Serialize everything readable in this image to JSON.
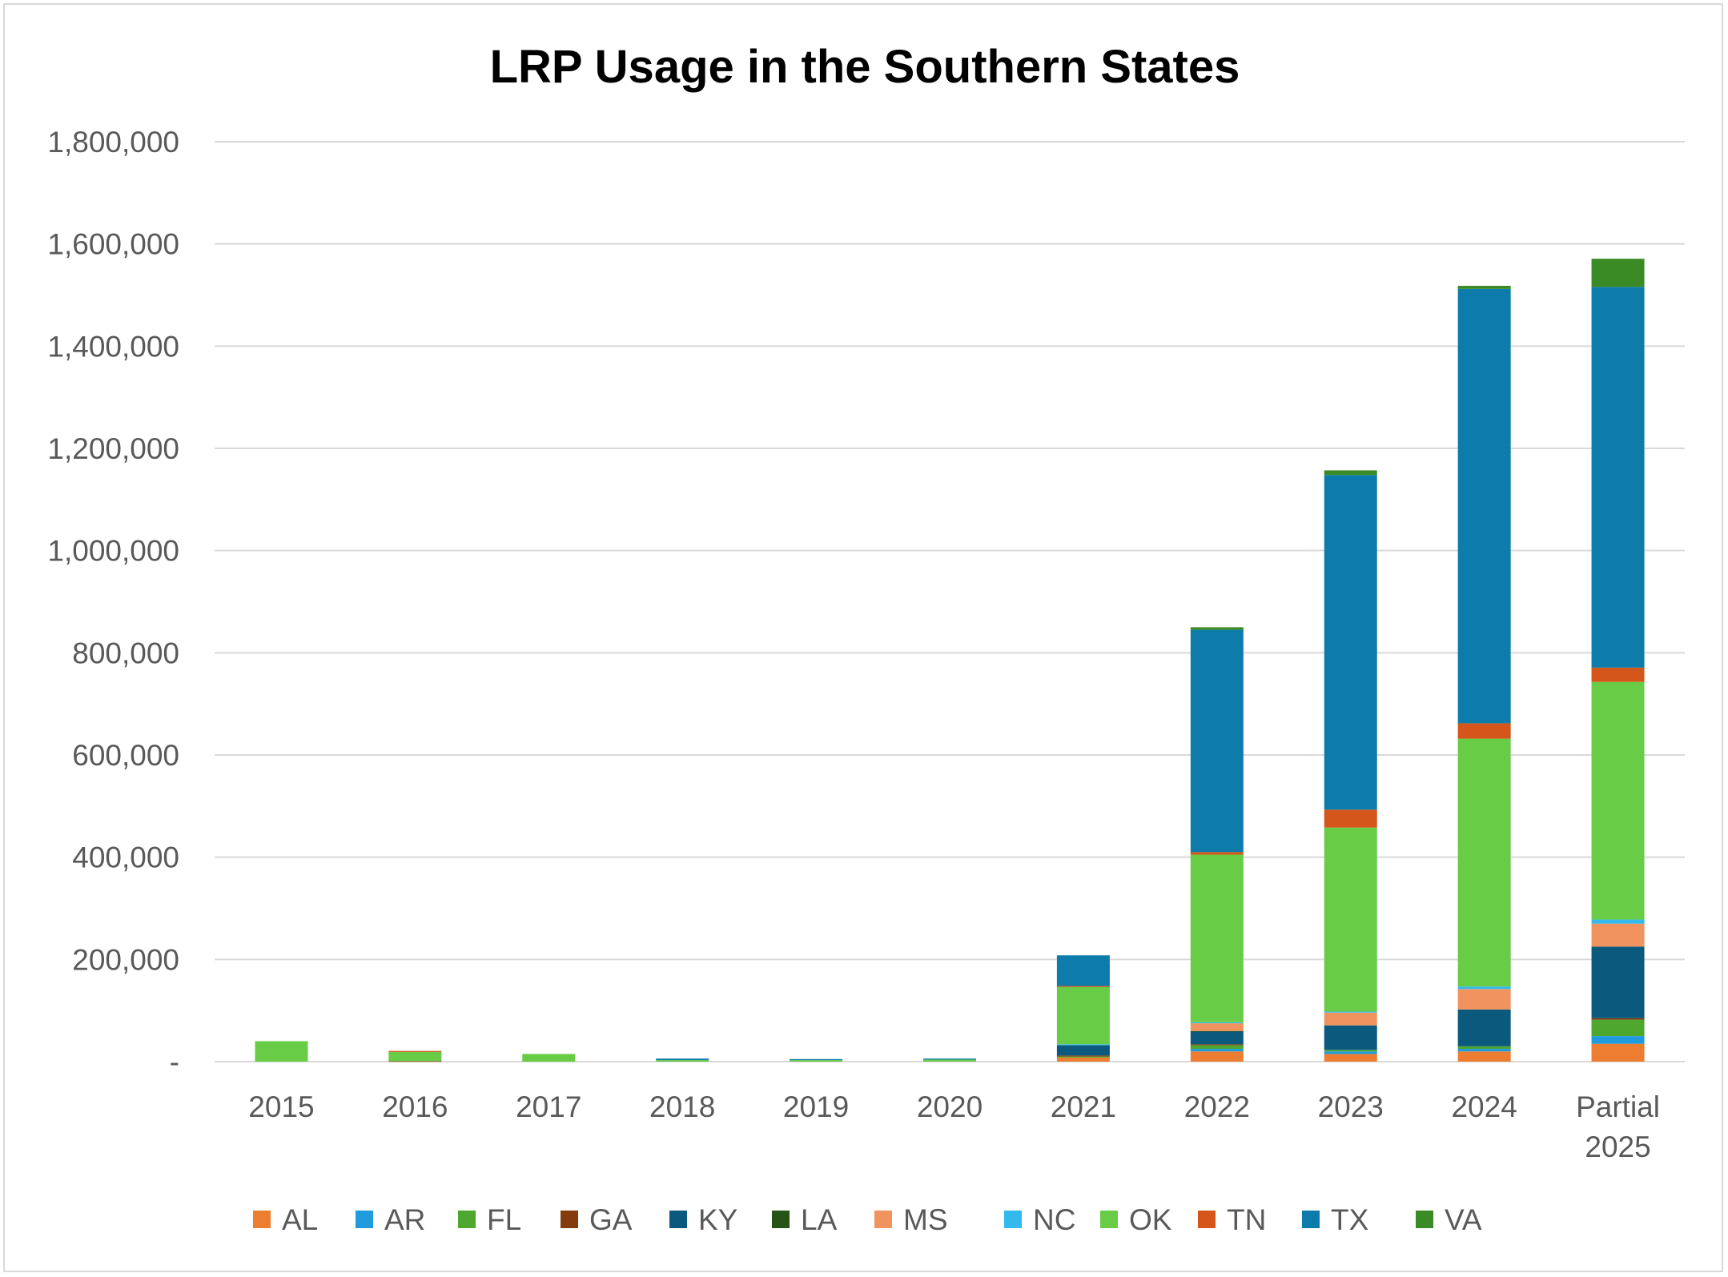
{
  "chart_data": {
    "type": "bar",
    "stacked": true,
    "title": "LRP Usage in the Southern States",
    "xlabel": "",
    "ylabel": "",
    "ylim": [
      0,
      1800000
    ],
    "yticks": [
      0,
      200000,
      400000,
      600000,
      800000,
      1000000,
      1200000,
      1400000,
      1600000,
      1800000
    ],
    "ytick_labels": [
      "-",
      "200,000",
      "400,000",
      "600,000",
      "800,000",
      "1,000,000",
      "1,200,000",
      "1,400,000",
      "1,600,000",
      "1,800,000"
    ],
    "categories": [
      [
        "2015"
      ],
      [
        "2016"
      ],
      [
        "2017"
      ],
      [
        "2018"
      ],
      [
        "2019"
      ],
      [
        "2020"
      ],
      [
        "2021"
      ],
      [
        "2022"
      ],
      [
        "2023"
      ],
      [
        "2024"
      ],
      [
        "Partial",
        "2025"
      ]
    ],
    "grid": true,
    "legend_position": "bottom",
    "series": [
      {
        "name": "AL",
        "color": "#ED7D31",
        "values": [
          0,
          0,
          0,
          0,
          0,
          0,
          8000,
          20000,
          15000,
          20000,
          35000
        ]
      },
      {
        "name": "AR",
        "color": "#1F9BDE",
        "values": [
          0,
          0,
          0,
          0,
          0,
          0,
          0,
          5000,
          5000,
          5000,
          15000
        ]
      },
      {
        "name": "FL",
        "color": "#4EA72E",
        "values": [
          0,
          0,
          0,
          0,
          0,
          0,
          2000,
          7000,
          3000,
          5000,
          32000
        ]
      },
      {
        "name": "GA",
        "color": "#843C0C",
        "values": [
          0,
          1000,
          0,
          0,
          0,
          0,
          2000,
          2000,
          0,
          0,
          3000
        ]
      },
      {
        "name": "KY",
        "color": "#0B5A7E",
        "values": [
          0,
          0,
          0,
          0,
          0,
          0,
          20000,
          25000,
          48000,
          72000,
          140000
        ]
      },
      {
        "name": "LA",
        "color": "#275317",
        "values": [
          0,
          0,
          0,
          0,
          0,
          0,
          0,
          1000,
          0,
          0,
          0
        ]
      },
      {
        "name": "MS",
        "color": "#F1935E",
        "values": [
          0,
          0,
          0,
          0,
          0,
          0,
          0,
          15000,
          25000,
          40000,
          45000
        ]
      },
      {
        "name": "NC",
        "color": "#34B9ED",
        "values": [
          0,
          0,
          0,
          0,
          0,
          0,
          2000,
          2000,
          2000,
          5000,
          8000
        ]
      },
      {
        "name": "OK",
        "color": "#69CC46",
        "values": [
          40000,
          18000,
          15000,
          3000,
          3000,
          4000,
          112000,
          328000,
          360000,
          485000,
          465000
        ]
      },
      {
        "name": "TN",
        "color": "#D4561A",
        "values": [
          0,
          2000,
          0,
          0,
          0,
          0,
          2000,
          5000,
          35000,
          30000,
          28000
        ]
      },
      {
        "name": "TX",
        "color": "#0E7CAA",
        "values": [
          0,
          0,
          0,
          3000,
          2000,
          2000,
          60000,
          435000,
          655000,
          850000,
          745000
        ]
      },
      {
        "name": "VA",
        "color": "#3A8A26",
        "values": [
          0,
          0,
          0,
          0,
          0,
          0,
          0,
          5000,
          9000,
          6000,
          55000
        ]
      }
    ]
  }
}
